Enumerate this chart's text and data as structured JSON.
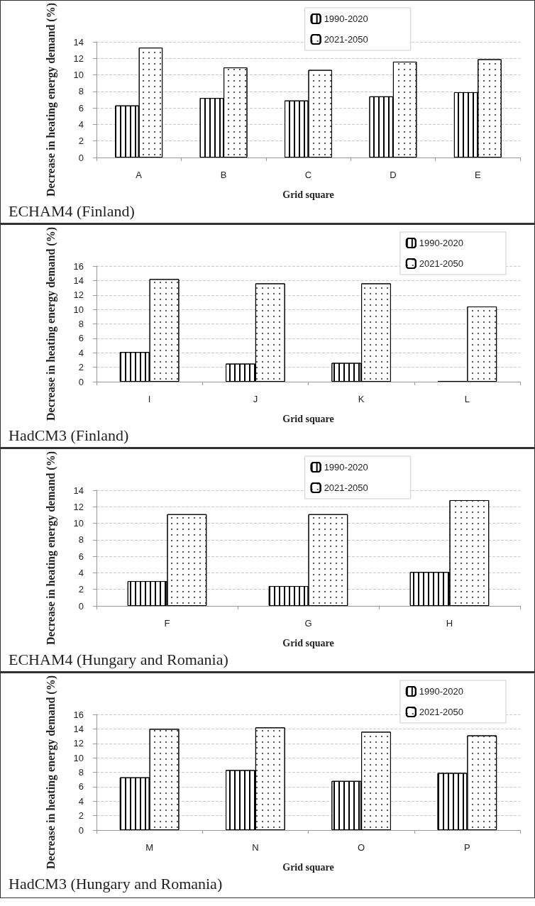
{
  "chart_data": [
    {
      "type": "bar",
      "title": "ECHAM4 (Finland)",
      "xlabel": "Grid square",
      "ylabel": "Decrease in heating energy demand (%)",
      "categories": [
        "A",
        "B",
        "C",
        "D",
        "E"
      ],
      "series": [
        {
          "name": "1990-2020",
          "color": "#ffffff",
          "values": [
            6.3,
            7.2,
            6.9,
            7.4,
            7.9
          ]
        },
        {
          "name": "2021-2050",
          "color": "#ffffff",
          "values": [
            13.3,
            10.9,
            10.6,
            11.6,
            11.9
          ]
        }
      ],
      "ylim": [
        0,
        14
      ],
      "yticks": [
        0,
        2,
        4,
        6,
        8,
        10,
        12,
        14
      ],
      "grid": "y",
      "legend": "top"
    },
    {
      "type": "bar",
      "title": "HadCM3 (Finland)",
      "xlabel": "Grid square",
      "ylabel": "Decrease in heating energy demand (%)",
      "categories": [
        "I",
        "J",
        "K",
        "L"
      ],
      "series": [
        {
          "name": "1990-2020",
          "color": "#ffffff",
          "values": [
            4.1,
            2.5,
            2.6,
            0.1
          ]
        },
        {
          "name": "2021-2050",
          "color": "#ffffff",
          "values": [
            14.2,
            13.6,
            13.6,
            10.4
          ]
        }
      ],
      "ylim": [
        0,
        16
      ],
      "yticks": [
        0,
        2,
        4,
        6,
        8,
        10,
        12,
        14,
        16
      ],
      "grid": "y",
      "legend": "top right"
    },
    {
      "type": "bar",
      "title": "ECHAM4 (Hungary and Romania)",
      "xlabel": "Grid square",
      "ylabel": "Decrease in heating energy demand (%)",
      "categories": [
        "F",
        "G",
        "H"
      ],
      "series": [
        {
          "name": "1990-2020",
          "color": "#ffffff",
          "values": [
            3.0,
            2.4,
            4.1
          ]
        },
        {
          "name": "2021-2050",
          "color": "#ffffff",
          "values": [
            11.1,
            11.1,
            12.8
          ]
        }
      ],
      "ylim": [
        0,
        14
      ],
      "yticks": [
        0,
        2,
        4,
        6,
        8,
        10,
        12,
        14
      ],
      "grid": "y",
      "legend": "top"
    },
    {
      "type": "bar",
      "title": "HadCM3 (Hungary and Romania)",
      "xlabel": "Grid square",
      "ylabel": "Decrease in heating energy demand (%)",
      "categories": [
        "M",
        "N",
        "O",
        "P"
      ],
      "series": [
        {
          "name": "1990-2020",
          "color": "#ffffff",
          "values": [
            7.3,
            8.3,
            6.8,
            7.9
          ]
        },
        {
          "name": "2021-2050",
          "color": "#ffffff",
          "values": [
            14.0,
            14.2,
            13.6,
            13.1
          ]
        }
      ],
      "ylim": [
        0,
        16
      ],
      "yticks": [
        0,
        2,
        4,
        6,
        8,
        10,
        12,
        14,
        16
      ],
      "grid": "y",
      "legend": "top right"
    }
  ]
}
